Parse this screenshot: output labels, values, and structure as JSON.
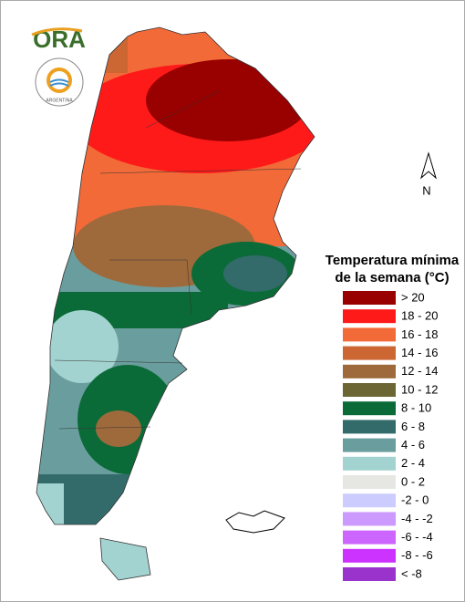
{
  "logo": {
    "name": "ORA",
    "seal": "ARGENTINA"
  },
  "north": "N",
  "legend": {
    "title": [
      "Temperatura mínima",
      "de la semana (°C)"
    ],
    "items": [
      {
        "label": "> 20",
        "color": "#990000"
      },
      {
        "label": "18 - 20",
        "color": "#ff1a1a"
      },
      {
        "label": "16 - 18",
        "color": "#f26a38"
      },
      {
        "label": "14 - 16",
        "color": "#cc6633"
      },
      {
        "label": "12 - 14",
        "color": "#9e6a3c"
      },
      {
        "label": "10 - 12",
        "color": "#6b6633"
      },
      {
        "label": "8 - 10",
        "color": "#0b6b38"
      },
      {
        "label": "6 - 8",
        "color": "#336b6b"
      },
      {
        "label": "4 - 6",
        "color": "#6a9e9e"
      },
      {
        "label": "2 - 4",
        "color": "#a3d3d0"
      },
      {
        "label": "0 - 2",
        "color": "#e6e6e3"
      },
      {
        "label": "-2 - 0",
        "color": "#ccccff"
      },
      {
        "label": "-4 - -2",
        "color": "#cc99ff"
      },
      {
        "label": "-6 - -4",
        "color": "#cc66ff"
      },
      {
        "label": "-8 - -6",
        "color": "#cc33ff"
      },
      {
        "label": "< -8",
        "color": "#9933cc"
      }
    ]
  }
}
